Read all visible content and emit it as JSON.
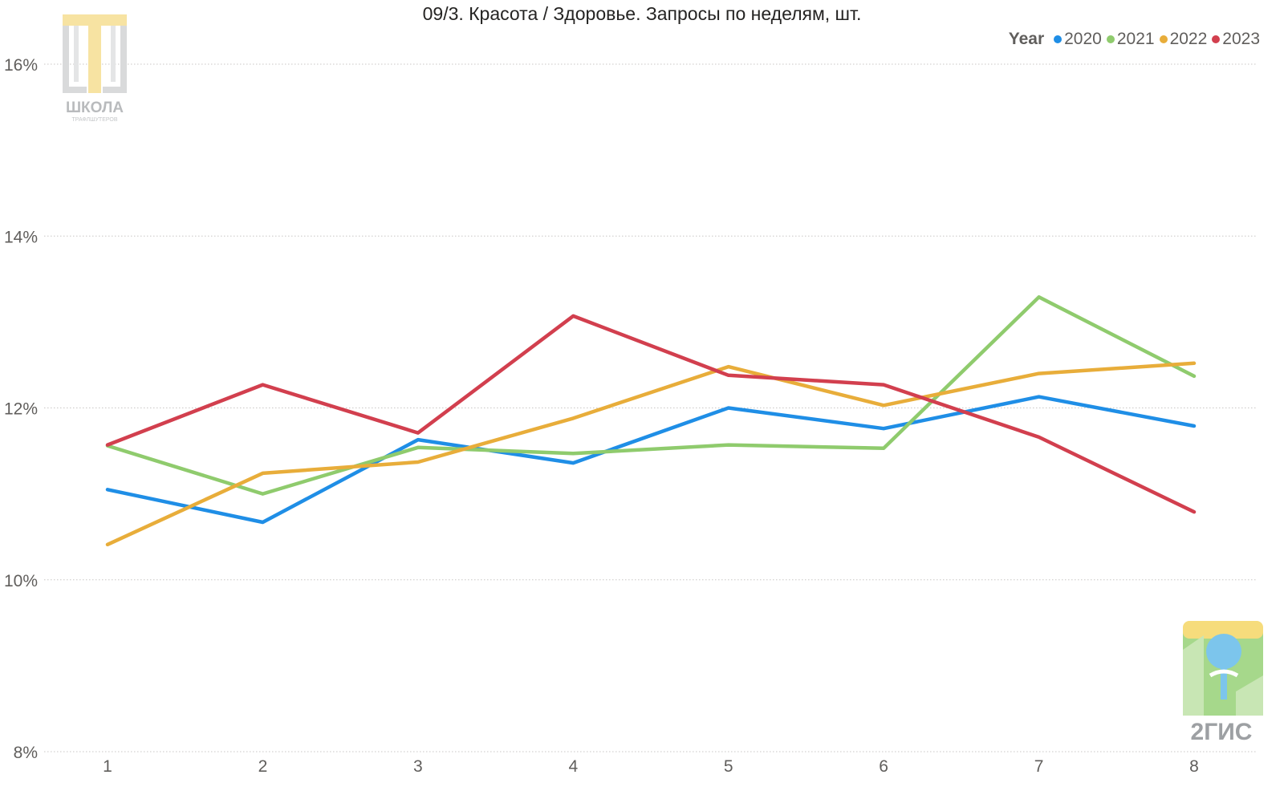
{
  "chart_data": {
    "type": "line",
    "title": "09/3. Красота / Здоровье. Запросы по неделям, шт.",
    "xlabel": "",
    "ylabel": "",
    "categories": [
      "1",
      "2",
      "3",
      "4",
      "5",
      "6",
      "7",
      "8"
    ],
    "ylim": [
      8,
      16
    ],
    "yticks": [
      8,
      10,
      12,
      14,
      16
    ],
    "ytick_labels": [
      "8%",
      "10%",
      "12%",
      "14%",
      "16%"
    ],
    "grid": true,
    "legend": {
      "title": "Year",
      "placement": "top-right"
    },
    "series": [
      {
        "name": "2020",
        "color": "#1f8ee6",
        "values": [
          11.05,
          10.67,
          11.63,
          11.36,
          12.0,
          11.76,
          12.13,
          11.79
        ]
      },
      {
        "name": "2021",
        "color": "#8fcb6d",
        "values": [
          11.56,
          11.0,
          11.54,
          11.47,
          11.57,
          11.53,
          13.29,
          12.37
        ]
      },
      {
        "name": "2022",
        "color": "#e8ad3a",
        "values": [
          10.41,
          11.24,
          11.37,
          11.88,
          12.48,
          12.03,
          12.4,
          12.52
        ]
      },
      {
        "name": "2023",
        "color": "#d23f4e",
        "values": [
          11.57,
          12.27,
          11.71,
          13.07,
          12.38,
          12.27,
          11.66,
          10.79
        ]
      }
    ]
  },
  "logos": {
    "school": {
      "name": "school-logo",
      "text": "ШКОЛА",
      "subtext": "ТРАФЛШУТЕРОВ"
    },
    "gis": {
      "name": "2gis-logo",
      "text": "2ГИС"
    }
  }
}
